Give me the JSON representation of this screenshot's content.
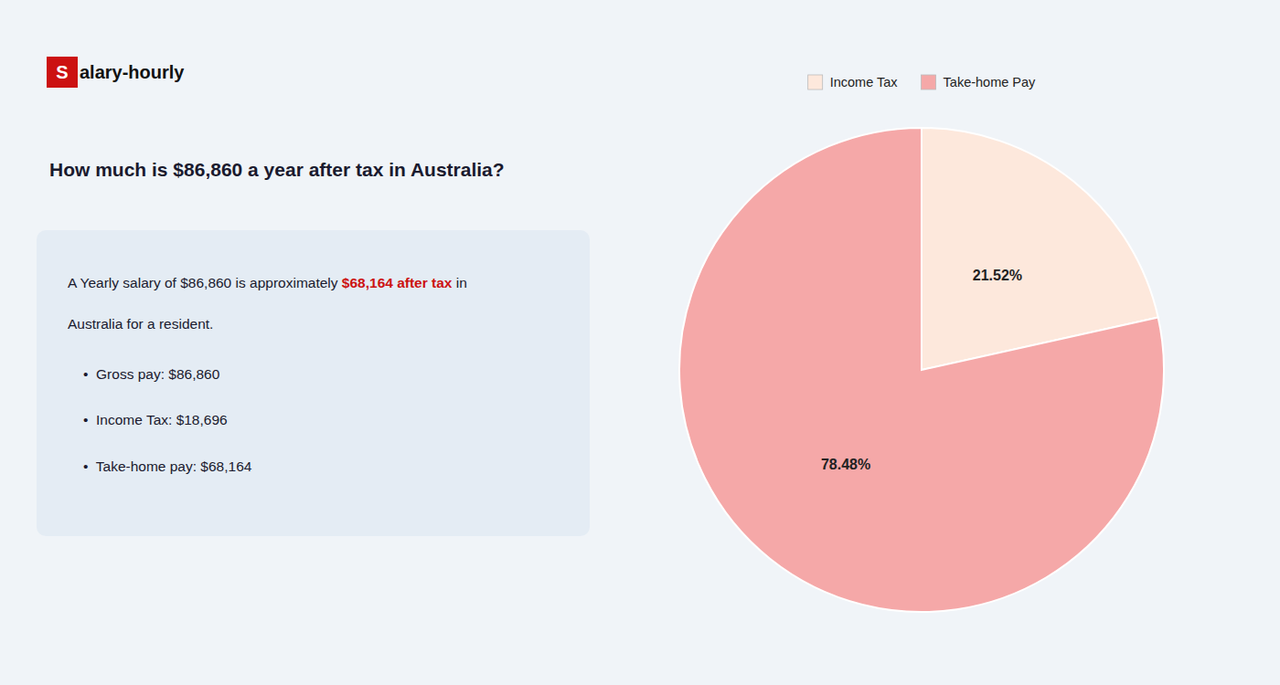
{
  "chart_data": {
    "type": "pie",
    "title": "How much is $86,860 a year after tax in Australia?",
    "annotations": [
      {
        "text": "S",
        "color": "#cc1111"
      },
      {
        "text": "alary-hourly"
      },
      {
        "text": "A Yearly salary of $86,860 is approximately "
      },
      {
        "text": "$68,164 after tax",
        "color": "#cc1111"
      },
      {
        "text": " in"
      },
      {
        "text": "Australia for a resident."
      },
      {
        "text": "•  Gross pay: $86,860"
      },
      {
        "text": "•  Income Tax: $18,696"
      },
      {
        "text": "•  Take-home pay: $68,164"
      }
    ],
    "categories": [
      "Income Tax",
      "Take-home Pay"
    ],
    "values": [
      21.52,
      78.48
    ],
    "value_labels": [
      "21.52%",
      "78.48%"
    ],
    "colors": [
      "#fde8dc",
      "#f5a8a8"
    ],
    "data_labels": true,
    "legend": "top"
  }
}
